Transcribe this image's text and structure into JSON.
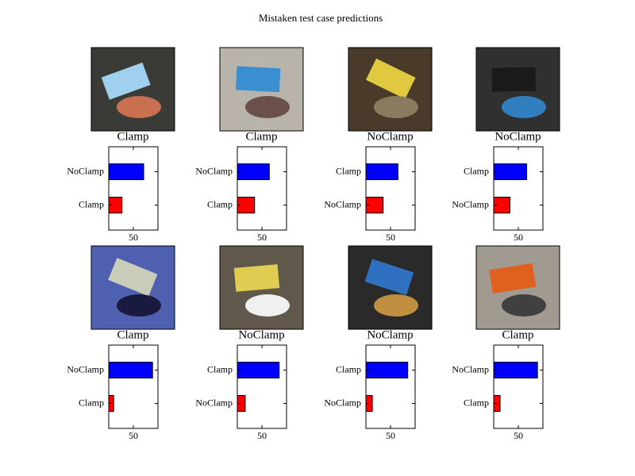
{
  "title": "Mistaken test case predictions",
  "chart_data": [
    {
      "type": "bar",
      "orientation": "horizontal",
      "title": "Clamp",
      "categories": [
        "Clamp",
        "NoClamp"
      ],
      "values": [
        27,
        71
      ],
      "colors": [
        "#ff0000",
        "#0000ff"
      ],
      "xlim": [
        0,
        100
      ],
      "xticks": [
        50
      ]
    },
    {
      "type": "bar",
      "orientation": "horizontal",
      "title": "Clamp",
      "categories": [
        "Clamp",
        "NoClamp"
      ],
      "values": [
        35,
        65
      ],
      "colors": [
        "#ff0000",
        "#0000ff"
      ],
      "xlim": [
        0,
        100
      ],
      "xticks": [
        50
      ]
    },
    {
      "type": "bar",
      "orientation": "horizontal",
      "title": "NoClamp",
      "categories": [
        "NoClamp",
        "Clamp"
      ],
      "values": [
        35,
        65
      ],
      "colors": [
        "#ff0000",
        "#0000ff"
      ],
      "xlim": [
        0,
        100
      ],
      "xticks": [
        50
      ]
    },
    {
      "type": "bar",
      "orientation": "horizontal",
      "title": "NoClamp",
      "categories": [
        "NoClamp",
        "Clamp"
      ],
      "values": [
        33,
        67
      ],
      "colors": [
        "#ff0000",
        "#0000ff"
      ],
      "xlim": [
        0,
        100
      ],
      "xticks": [
        50
      ]
    },
    {
      "type": "bar",
      "orientation": "horizontal",
      "title": "Clamp",
      "categories": [
        "Clamp",
        "NoClamp"
      ],
      "values": [
        10,
        89
      ],
      "colors": [
        "#ff0000",
        "#0000ff"
      ],
      "xlim": [
        0,
        100
      ],
      "xticks": [
        50
      ]
    },
    {
      "type": "bar",
      "orientation": "horizontal",
      "title": "NoClamp",
      "categories": [
        "NoClamp",
        "Clamp"
      ],
      "values": [
        16,
        85
      ],
      "colors": [
        "#ff0000",
        "#0000ff"
      ],
      "xlim": [
        0,
        100
      ],
      "xticks": [
        50
      ]
    },
    {
      "type": "bar",
      "orientation": "horizontal",
      "title": "NoClamp",
      "categories": [
        "NoClamp",
        "Clamp"
      ],
      "values": [
        13,
        85
      ],
      "colors": [
        "#ff0000",
        "#0000ff"
      ],
      "xlim": [
        0,
        100
      ],
      "xticks": [
        50
      ]
    },
    {
      "type": "bar",
      "orientation": "horizontal",
      "title": "Clamp",
      "categories": [
        "Clamp",
        "NoClamp"
      ],
      "values": [
        13,
        89
      ],
      "colors": [
        "#ff0000",
        "#0000ff"
      ],
      "xlim": [
        0,
        100
      ],
      "xticks": [
        50
      ]
    }
  ]
}
